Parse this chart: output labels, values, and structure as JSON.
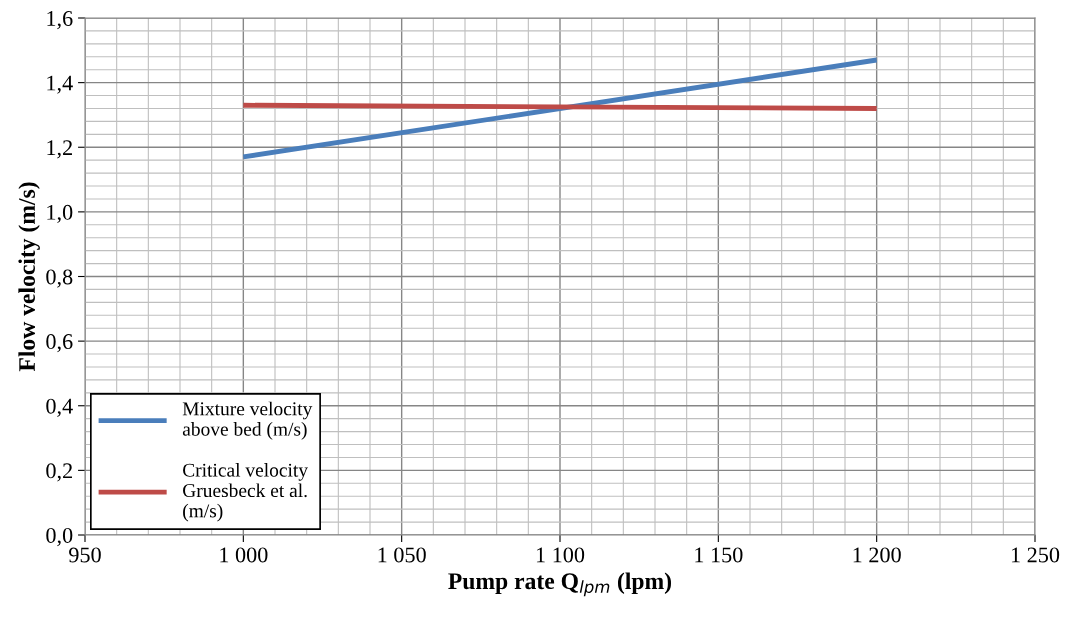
{
  "chart_data": {
    "type": "line",
    "xlabel": "Pump rate Q$_{lpm}$ (lpm)",
    "ylabel": "Flow velocity (m/s)",
    "x": [
      1000,
      1200
    ],
    "series": [
      {
        "name": "Mixture velocity\nabove bed (m/s)",
        "color": "#4a7ebb",
        "values": [
          1.17,
          1.47
        ]
      },
      {
        "name": "Critical velocity\nGruesbeck et al.\n(m/s)",
        "color": "#be4b48",
        "values": [
          1.33,
          1.32
        ]
      }
    ],
    "xlim": [
      950,
      1250
    ],
    "xticks": [
      950,
      {
        "value": 1000,
        "label": "1 000"
      },
      {
        "value": 1050,
        "label": "1 050"
      },
      {
        "value": 1100,
        "label": "1 100"
      },
      {
        "value": 1150,
        "label": "1 150"
      },
      {
        "value": 1200,
        "label": "1 200"
      },
      {
        "value": 1250,
        "label": "1 250"
      }
    ],
    "ylim": [
      0,
      1.6
    ],
    "yticks": [
      {
        "value": 0,
        "label": "0,0"
      },
      {
        "value": 0.2,
        "label": "0,2"
      },
      {
        "value": 0.4,
        "label": "0,4"
      },
      {
        "value": 0.6,
        "label": "0,6"
      },
      {
        "value": 0.8,
        "label": "0,8"
      },
      {
        "value": 1.0,
        "label": "1,0"
      },
      {
        "value": 1.2,
        "label": "1,2"
      },
      {
        "value": 1.4,
        "label": "1,4"
      },
      {
        "value": 1.6,
        "label": "1,6"
      }
    ],
    "grid": true,
    "legend": "bottom left",
    "marker": "none",
    "line_style": "solid"
  }
}
